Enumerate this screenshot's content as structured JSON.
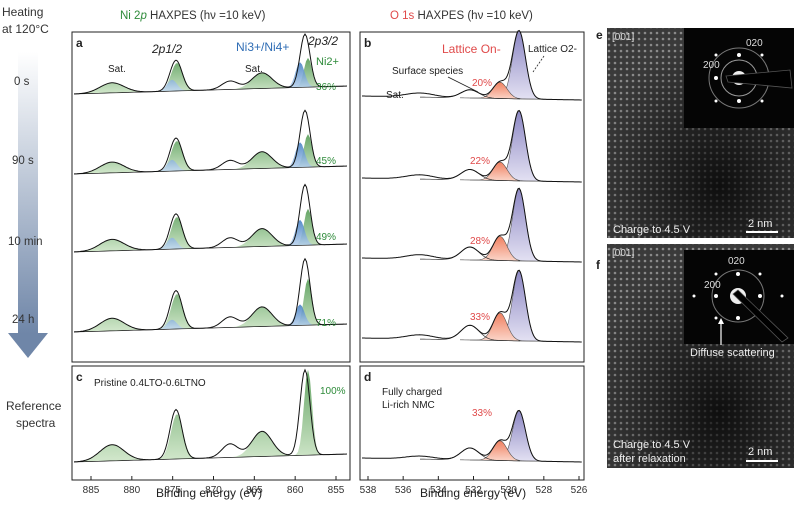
{
  "left_header": {
    "line1": "Heating",
    "line2": "at 120°C"
  },
  "time_labels": [
    "0 s",
    "90 s",
    "10 min",
    "24 h"
  ],
  "reference_label": {
    "line1": "Reference",
    "line2": "spectra"
  },
  "ni_title": {
    "prefix": "Ni 2",
    "italic": "p",
    "suffix": " HAXPES (hν =10 keV)"
  },
  "o_title": {
    "prefix": "O 1s",
    "suffix": " HAXPES (hν =10 keV)"
  },
  "panel_labels": {
    "a": "a",
    "b": "b",
    "c": "c",
    "d": "d",
    "e": "e",
    "f": "f"
  },
  "ni_annotations": {
    "sat1": "Sat.",
    "sat2": "Sat.",
    "two_p_half": "2p1/2",
    "two_p_three_half": "2p3/2",
    "ni34": "Ni3+/Ni4+",
    "ni2": "Ni2+"
  },
  "ni_percentages": [
    "36%",
    "45%",
    "49%",
    "71%",
    "100%"
  ],
  "ni_reference_text": "Pristine 0.4LTO-0.6LTNO",
  "o_annotations": {
    "lattice_on": "Lattice On-",
    "lattice_o2": "Lattice O2-",
    "surface": "Surface species",
    "sat": "Sat."
  },
  "o_percentages": [
    "20%",
    "22%",
    "28%",
    "33%",
    "33%"
  ],
  "o_reference_text": {
    "line1": "Fully charged",
    "line2": "Li-rich NMC"
  },
  "ni_axis": {
    "ticks": [
      "885",
      "880",
      "875",
      "870",
      "865",
      "860",
      "855"
    ],
    "label": "Binding energy (eV)",
    "range": [
      887,
      852
    ]
  },
  "o_axis": {
    "ticks": [
      "538",
      "536",
      "534",
      "532",
      "530",
      "528",
      "526"
    ],
    "label": "Binding energy (eV)",
    "range": [
      538,
      525.5
    ]
  },
  "tem_e": {
    "zone": "[001]",
    "caption": "Charge to 4.5 V",
    "scale": "2 nm",
    "spots": [
      "020",
      "200"
    ]
  },
  "tem_f": {
    "zone": "[001]",
    "caption1": "Charge to 4.5 V",
    "caption2": "after relaxation",
    "scale": "2 nm",
    "spots": [
      "020",
      "200"
    ],
    "annotation": "Diffuse scattering"
  },
  "colors": {
    "green": "#2e8b3a",
    "blue": "#2f6db5",
    "red": "#e04a4a",
    "lavender": "#9b97c8",
    "salmon": "#f39a83"
  }
}
